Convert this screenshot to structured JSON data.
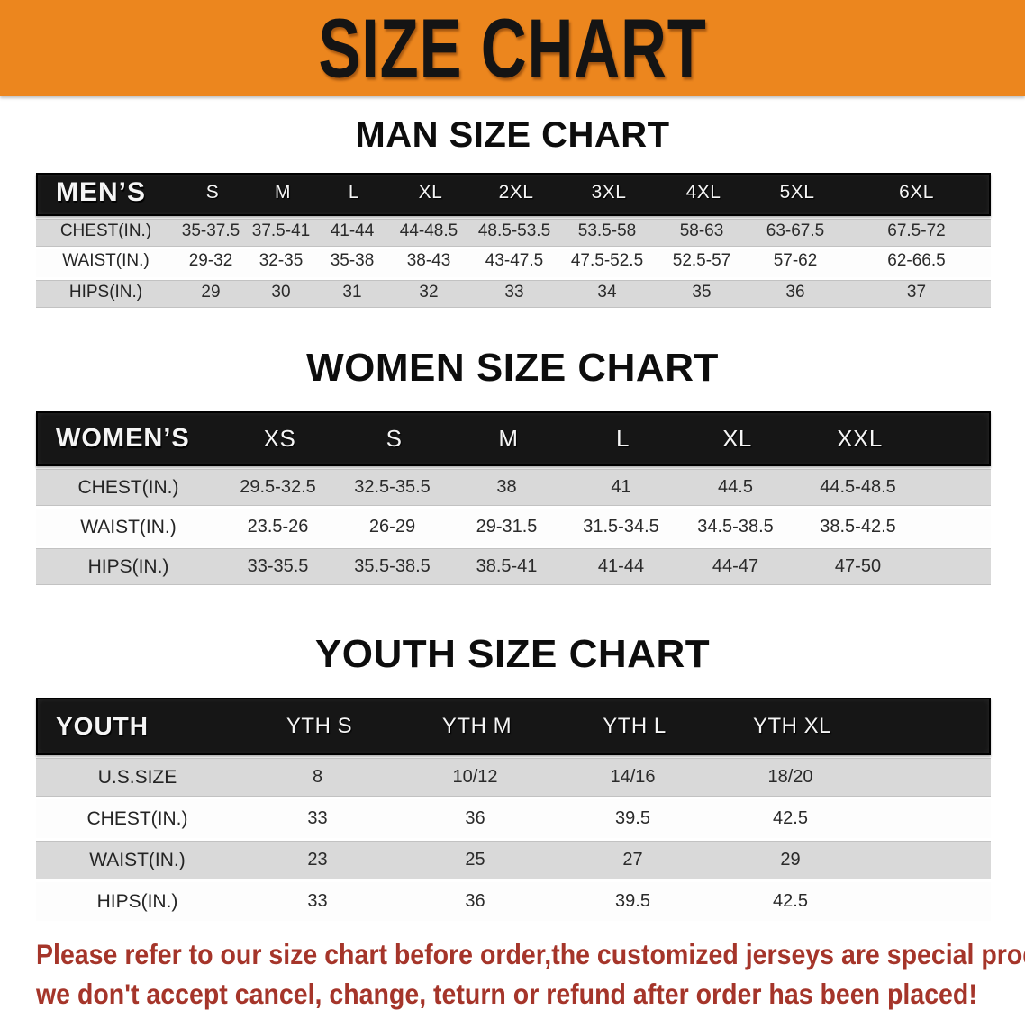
{
  "banner": {
    "title": "SIZE CHART"
  },
  "colors": {
    "banner_bg": "#ec861e",
    "table_header_bg": "#161616",
    "row_gray": "#d9d9d9",
    "footer_red": "#a5352a"
  },
  "sections": [
    {
      "id": "men",
      "heading": "MAN SIZE CHART",
      "table": {
        "header_label": "MEN’S",
        "columns": [
          "S",
          "M",
          "L",
          "XL",
          "2XL",
          "3XL",
          "4XL",
          "5XL",
          "6XL"
        ],
        "rows": [
          {
            "label": "CHEST(IN.)",
            "values": [
              "35-37.5",
              "37.5-41",
              "41-44",
              "44-48.5",
              "48.5-53.5",
              "53.5-58",
              "58-63",
              "63-67.5",
              "67.5-72"
            ]
          },
          {
            "label": "WAIST(IN.)",
            "values": [
              "29-32",
              "32-35",
              "35-38",
              "38-43",
              "43-47.5",
              "47.5-52.5",
              "52.5-57",
              "57-62",
              "62-66.5"
            ]
          },
          {
            "label": "HIPS(IN.)",
            "values": [
              "29",
              "30",
              "31",
              "32",
              "33",
              "34",
              "35",
              "36",
              "37"
            ]
          }
        ]
      }
    },
    {
      "id": "women",
      "heading": "WOMEN SIZE CHART",
      "table": {
        "header_label": "WOMEN’S",
        "columns": [
          "XS",
          "S",
          "M",
          "L",
          "XL",
          "XXL"
        ],
        "rows": [
          {
            "label": "CHEST(IN.)",
            "values": [
              "29.5-32.5",
              "32.5-35.5",
              "38",
              "41",
              "44.5",
              "44.5-48.5"
            ]
          },
          {
            "label": "WAIST(IN.)",
            "values": [
              "23.5-26",
              "26-29",
              "29-31.5",
              "31.5-34.5",
              "34.5-38.5",
              "38.5-42.5"
            ]
          },
          {
            "label": "HIPS(IN.)",
            "values": [
              "33-35.5",
              "35.5-38.5",
              "38.5-41",
              "41-44",
              "44-47",
              "47-50"
            ]
          }
        ]
      }
    },
    {
      "id": "youth",
      "heading": "YOUTH SIZE CHART",
      "table": {
        "header_label": "YOUTH",
        "columns": [
          "YTH S",
          "YTH M",
          "YTH L",
          "YTH XL"
        ],
        "rows": [
          {
            "label": "U.S.SIZE",
            "values": [
              "8",
              "10/12",
              "14/16",
              "18/20"
            ]
          },
          {
            "label": "CHEST(IN.)",
            "values": [
              "33",
              "36",
              "39.5",
              "42.5"
            ]
          },
          {
            "label": "WAIST(IN.)",
            "values": [
              "23",
              "25",
              "27",
              "29"
            ]
          },
          {
            "label": "HIPS(IN.)",
            "values": [
              "33",
              "36",
              "39.5",
              "42.5"
            ]
          }
        ]
      }
    }
  ],
  "footer": {
    "line1": "Please refer to our size chart before order,the customized jerseys are special products,",
    "line2": "we don't accept cancel, change, teturn or refund after order has been placed!"
  }
}
